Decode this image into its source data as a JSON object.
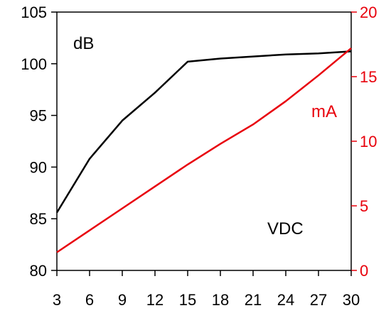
{
  "chart_data": {
    "type": "line",
    "x": [
      3,
      6,
      9,
      12,
      15,
      18,
      21,
      24,
      27,
      30
    ],
    "x_ticks": [
      "3",
      "6",
      "9",
      "12",
      "15",
      "18",
      "21",
      "24",
      "27",
      "30"
    ],
    "xlim": [
      3,
      30
    ],
    "left_axis": {
      "ylim": [
        80,
        105
      ],
      "ticks": [
        "80",
        "85",
        "90",
        "95",
        "100",
        "105"
      ],
      "color": "#000000"
    },
    "right_axis": {
      "ylim": [
        0,
        20
      ],
      "ticks": [
        "0",
        "5",
        "10",
        "15",
        "20"
      ],
      "color": "#e8000b"
    },
    "series": [
      {
        "name": "dB",
        "axis": "left",
        "color": "#000000",
        "values": [
          85.6,
          90.8,
          94.5,
          97.2,
          100.2,
          100.5,
          100.7,
          100.9,
          101.0,
          101.2
        ]
      },
      {
        "name": "mA",
        "axis": "right",
        "color": "#e8000b",
        "values": [
          1.4,
          3.1,
          4.8,
          6.5,
          8.2,
          9.8,
          11.3,
          13.1,
          15.1,
          17.2
        ]
      }
    ],
    "annotations": {
      "db_label": "dB",
      "ma_label": "mA",
      "vdc_label": "VDC"
    },
    "grid": false,
    "legend": "none"
  }
}
